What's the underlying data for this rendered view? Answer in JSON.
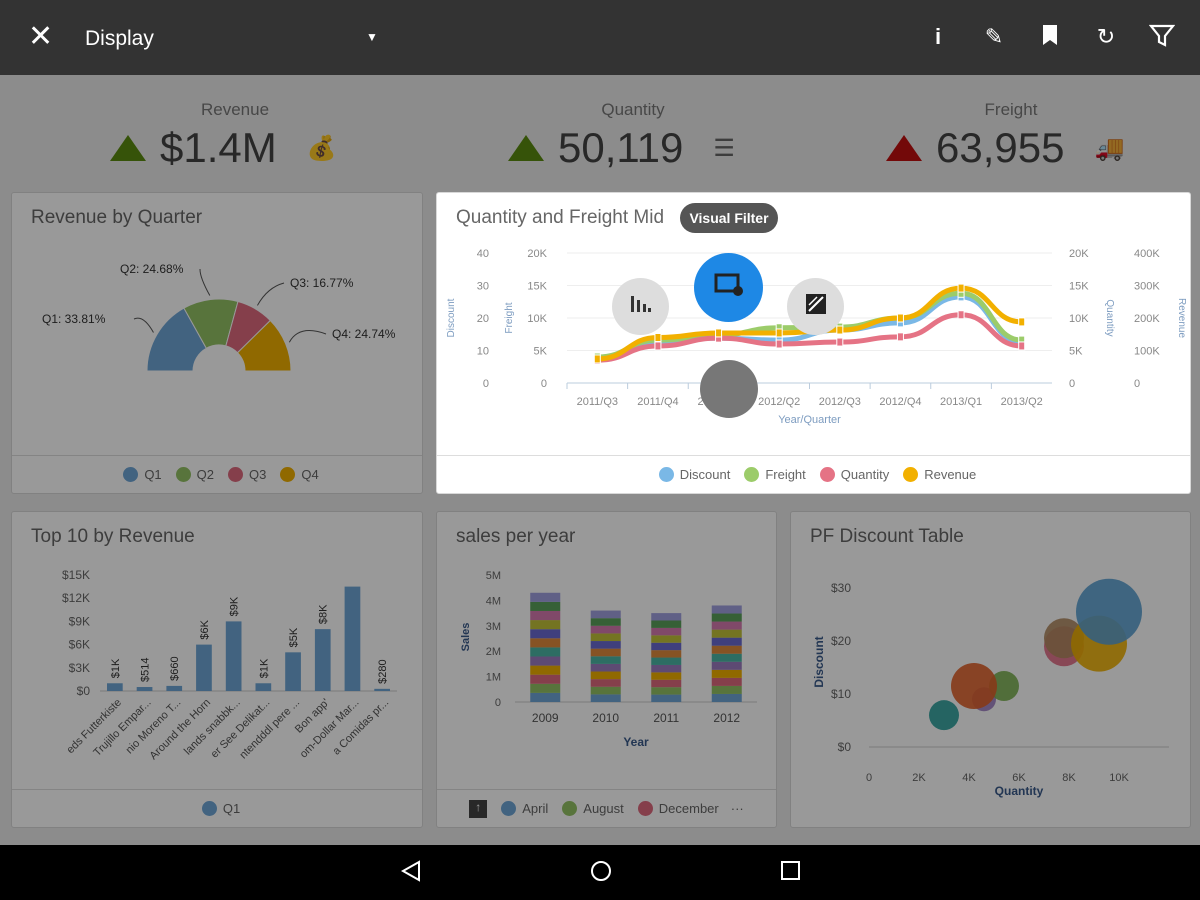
{
  "header": {
    "title": "Display",
    "close_icon": "close-icon",
    "actions": [
      "info-icon",
      "edit-off-icon",
      "bookmark-icon",
      "refresh-icon",
      "filter-icon"
    ]
  },
  "kpis": [
    {
      "label": "Revenue",
      "value": "$1.4M",
      "trend": "up",
      "color": "#5a8a10",
      "icon": "money-bag-icon"
    },
    {
      "label": "Quantity",
      "value": "50,119",
      "trend": "up",
      "color": "#5a8a10",
      "icon": "list-icon"
    },
    {
      "label": "Freight",
      "value": "63,955",
      "trend": "up",
      "color": "#c01010",
      "icon": "truck-icon"
    }
  ],
  "radial_menu": {
    "tooltip": "Visual Filter",
    "items": [
      "chart-type-icon",
      "visual-filter-icon",
      "toggle-icon",
      "center-button"
    ]
  },
  "chart_data": [
    {
      "id": "revenue_by_quarter",
      "type": "pie",
      "title": "Revenue by Quarter",
      "categories": [
        "Q1",
        "Q2",
        "Q3",
        "Q4"
      ],
      "values": [
        33.81,
        24.68,
        16.77,
        24.74
      ],
      "labels": [
        "Q1: 33.81%",
        "Q2: 24.68%",
        "Q3: 16.77%",
        "Q4: 24.74%"
      ],
      "colors": [
        "#6ea6d6",
        "#93c264",
        "#de6a7e",
        "#f0b000"
      ],
      "legend": [
        "Q1",
        "Q2",
        "Q3",
        "Q4"
      ]
    },
    {
      "id": "quantity_freight",
      "type": "line",
      "title": "Quantity and Freight Mid",
      "x": [
        "2011/Q3",
        "2011/Q4",
        "2012/Q1",
        "2012/Q2",
        "2012/Q3",
        "2012/Q4",
        "2013/Q1",
        "2013/Q2"
      ],
      "xlabel": "Year/Quarter",
      "axes": {
        "left1": {
          "label": "Discount",
          "ticks": [
            "0",
            "10",
            "20",
            "30",
            "40"
          ],
          "max": 40
        },
        "left2": {
          "label": "Freight",
          "ticks": [
            "0",
            "5K",
            "10K",
            "15K",
            "20K"
          ],
          "max": 20000
        },
        "right1": {
          "label": "Quantity",
          "ticks": [
            "0",
            "5K",
            "10K",
            "15K",
            "20K"
          ],
          "max": 20000
        },
        "right2": {
          "label": "Revenue",
          "ticks": [
            "0",
            "100K",
            "200K",
            "300K",
            "400K"
          ],
          "max": 400000
        }
      },
      "series": [
        {
          "name": "Discount",
          "axis": "left1",
          "color": "#7ab8e6",
          "values": [
            7.7,
            12.6,
            13.8,
            13.2,
            16.3,
            18.5,
            26.5,
            12.6
          ]
        },
        {
          "name": "Freight",
          "axis": "left2",
          "color": "#9ccc6a",
          "values": [
            4000,
            6600,
            7400,
            8500,
            8600,
            10000,
            13800,
            6600
          ]
        },
        {
          "name": "Quantity",
          "axis": "right1",
          "color": "#e57385",
          "values": [
            3500,
            5700,
            6900,
            6000,
            6300,
            7100,
            10500,
            5700
          ]
        },
        {
          "name": "Revenue",
          "axis": "right2",
          "color": "#f2b000",
          "values": [
            74000,
            140000,
            154000,
            154000,
            163000,
            200000,
            292000,
            188000
          ]
        }
      ],
      "legend": "bottom"
    },
    {
      "id": "top10",
      "type": "bar",
      "title": "Top 10 by Revenue",
      "categories": [
        "eds Futterkiste",
        "Trujillo Empar...",
        "nio Moreno T...",
        "Around the Horn",
        "lands snabbk...",
        "er See Delikat...",
        "ntendddl pere ...",
        "Bon app'",
        "om-Dollar Mar...",
        "a Comidas pr..."
      ],
      "values": [
        1000,
        514,
        660,
        6000,
        9000,
        1000,
        5000,
        8000,
        13500,
        280
      ],
      "data_labels": [
        "$1K",
        "$514",
        "$660",
        "$6K",
        "$9K",
        "$1K",
        "$5K",
        "$8K",
        "",
        "$280"
      ],
      "yticks": [
        "$0",
        "$3K",
        "$6K",
        "$9K",
        "$12K",
        "$15K"
      ],
      "ylim": [
        0,
        15000
      ],
      "color": "#6ea6d6",
      "legend": [
        "Q1"
      ]
    },
    {
      "id": "sales_per_year",
      "type": "bar",
      "stacked": true,
      "title": "sales per year",
      "categories": [
        "2009",
        "2010",
        "2011",
        "2012"
      ],
      "totals": [
        4300000,
        3600000,
        3500000,
        3800000
      ],
      "yticks": [
        "0",
        "1M",
        "2M",
        "3M",
        "4M",
        "5M"
      ],
      "ylim": [
        0,
        5000000
      ],
      "xlabel": "Year",
      "ylabel": "Sales",
      "legend": [
        "April",
        "August",
        "December"
      ],
      "legend_more": "···",
      "colors": [
        "#6ea6d6",
        "#93c264",
        "#de6a7e",
        "#f0b000",
        "#9c7cc0",
        "#4bb6a6",
        "#e08a3c",
        "#6a6ad0",
        "#c2c23a",
        "#d67ab0",
        "#5aa05a",
        "#a0a0e0"
      ]
    },
    {
      "id": "pf_discount",
      "type": "scatter",
      "title": "PF Discount Table",
      "xlabel": "Quantity",
      "ylabel": "Discount",
      "xticks": [
        "0",
        "2K",
        "4K",
        "6K",
        "8K",
        "10K"
      ],
      "xlim": [
        0,
        12000
      ],
      "yticks": [
        "$0",
        "$10",
        "$20",
        "$30"
      ],
      "ylim": [
        0,
        33
      ],
      "points": [
        {
          "x": 3000,
          "y": 6,
          "size": 15,
          "color": "#2a9d9a"
        },
        {
          "x": 4600,
          "y": 9,
          "size": 12,
          "color": "#9c7cc0"
        },
        {
          "x": 5400,
          "y": 11.5,
          "size": 15,
          "color": "#7ab050"
        },
        {
          "x": 4200,
          "y": 11.5,
          "size": 23,
          "color": "#e0602a"
        },
        {
          "x": 7800,
          "y": 19,
          "size": 20,
          "color": "#e06a84"
        },
        {
          "x": 7800,
          "y": 20.5,
          "size": 20,
          "color": "#b08860"
        },
        {
          "x": 9200,
          "y": 19.5,
          "size": 28,
          "color": "#f0b000"
        },
        {
          "x": 9600,
          "y": 25.5,
          "size": 33,
          "color": "#5aa0d0"
        }
      ]
    }
  ],
  "navbar": {
    "back_icon": "back-icon",
    "home_icon": "home-icon",
    "recents_icon": "recents-icon"
  }
}
